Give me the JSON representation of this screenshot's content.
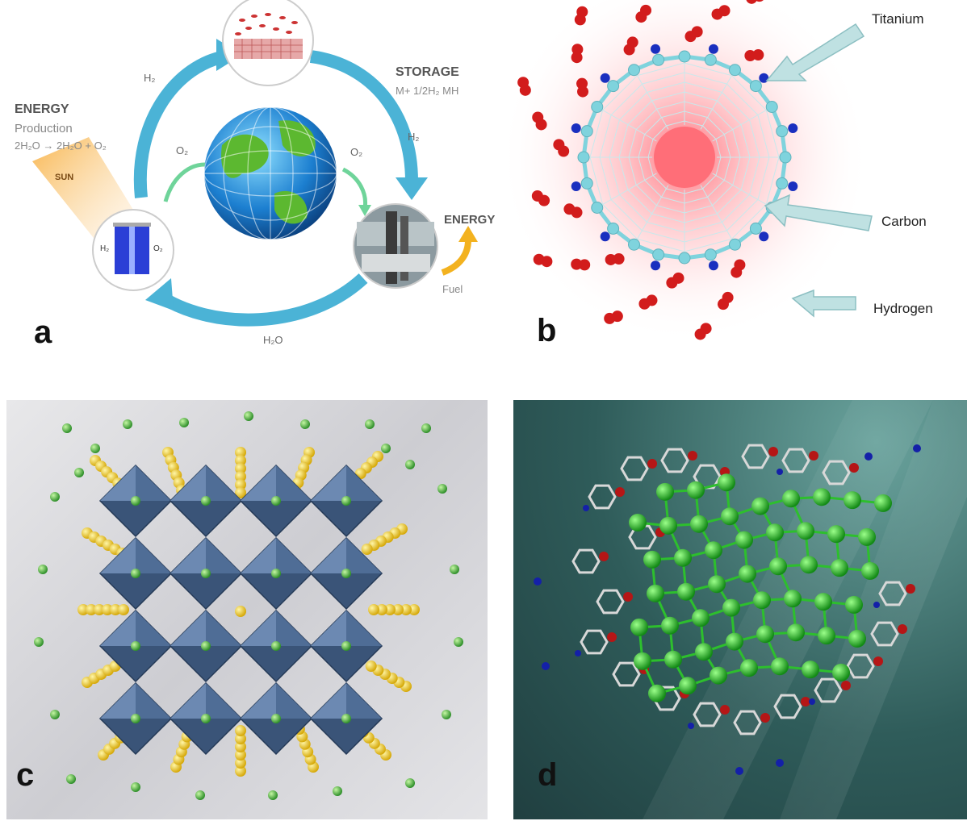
{
  "panels": {
    "a": {
      "label": "a",
      "energy_title": "ENERGY",
      "production": "Production",
      "production_eq": "2H₂O → 2H₂O + O₂",
      "sun": "SUN",
      "storage_title": "STORAGE",
      "storage_eq": "M+ 1/2H₂ MH",
      "h2_left": "H₂",
      "h2_right": "H₂",
      "o2_left": "O₂",
      "o2_right": "O₂",
      "cell_h2": "H₂",
      "cell_o2": "O₂",
      "energy_out": "ENERGY",
      "fuel": "Fuel",
      "water": "H₂O"
    },
    "b": {
      "label": "b",
      "callouts": [
        "Titanium",
        "Carbon",
        "Hydrogen"
      ]
    },
    "c": {
      "label": "c"
    },
    "d": {
      "label": "d"
    }
  },
  "colors": {
    "cycle_arrow": "#4bb3d6",
    "hydrogen": "#d21c1c",
    "carbon": "#7fd3dd",
    "titanium": "#1a2fbf",
    "octahedron": "#3a5478",
    "yellow_atom": "#e8c21b",
    "green_atom": "#3fae3a",
    "panel_d_bg": "#2f5c5a"
  }
}
